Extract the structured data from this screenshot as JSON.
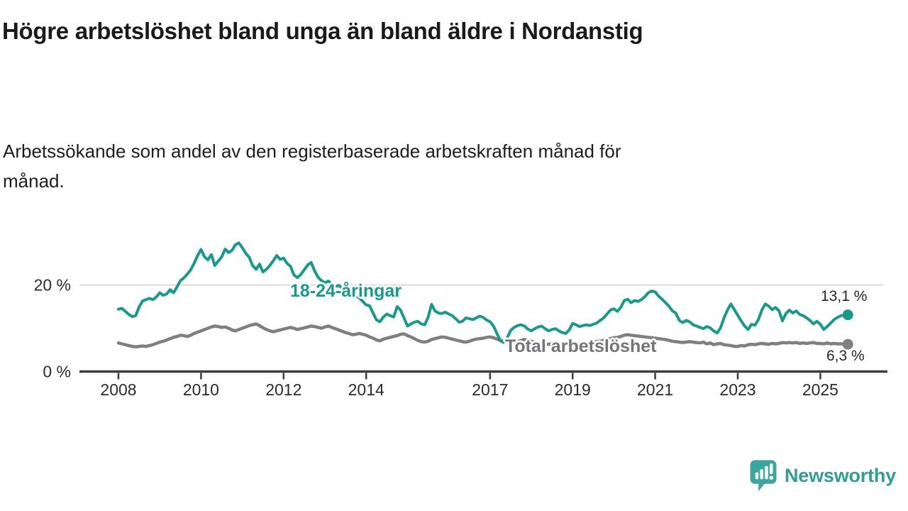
{
  "header": {
    "title": "Högre arbetslöshet bland unga än bland äldre i Nordanstig",
    "subtitle": "Arbetssökande som andel av den registerbaserade arbetskraften månad för månad."
  },
  "footer": {
    "brand": "Newsworthy",
    "logo_icon": "speech-bubble-bar-chart-icon"
  },
  "chart_data": {
    "type": "line",
    "unit": "percent",
    "grid": "single horizontal gridline at 20 %",
    "legend_position": "inline labels on lines",
    "colors": {
      "background": "#ffffff",
      "axis": "#3d3d3d",
      "gridline": "#dadada",
      "tick_text": "#2b2b2b",
      "end_label_text": "#262626"
    },
    "x_axis": {
      "start_year": 2008,
      "months_per_point": 1,
      "ticks": [
        2008,
        2010,
        2012,
        2014,
        2017,
        2019,
        2021,
        2023,
        2025
      ],
      "range": [
        2007.9,
        2025.8
      ]
    },
    "y_axis": {
      "range": [
        0,
        31
      ],
      "ticks": [
        {
          "value": 0,
          "label": "0 %",
          "grid": false
        },
        {
          "value": 20,
          "label": "20 %",
          "grid": true
        }
      ]
    },
    "series": [
      {
        "name": "18-24-åringar",
        "color": "#169b8b",
        "label_color": "#169b8b",
        "stroke_width": 4,
        "end_label": "13,1 %",
        "end_value": 13.1,
        "start_year": 2008,
        "points_per_year": 12,
        "values": [
          14.4,
          14.6,
          13.9,
          13.2,
          12.7,
          12.9,
          14.9,
          16.3,
          16.6,
          16.9,
          16.6,
          17.2,
          18.2,
          17.6,
          17.9,
          18.9,
          18.2,
          19.5,
          21.0,
          21.6,
          22.5,
          23.5,
          25.0,
          26.8,
          28.2,
          26.5,
          25.8,
          27.0,
          24.5,
          25.5,
          26.5,
          28.3,
          27.5,
          28.0,
          29.3,
          29.7,
          28.6,
          27.3,
          26.4,
          24.5,
          23.6,
          24.8,
          23.0,
          23.6,
          24.5,
          25.6,
          26.8,
          25.9,
          26.2,
          25.0,
          24.3,
          22.3,
          21.7,
          22.4,
          23.5,
          24.6,
          25.2,
          23.3,
          21.8,
          21.0,
          20.5,
          20.9,
          20.2,
          19.6,
          19.9,
          19.2,
          18.6,
          18.9,
          18.1,
          17.5,
          17.0,
          16.2,
          15.4,
          15.2,
          13.5,
          11.9,
          11.5,
          12.6,
          13.3,
          12.9,
          12.6,
          15.0,
          14.2,
          12.4,
          10.5,
          11.0,
          11.4,
          11.6,
          11.0,
          10.8,
          12.5,
          15.5,
          14.0,
          13.5,
          13.4,
          13.7,
          13.3,
          12.9,
          12.2,
          11.4,
          11.6,
          12.4,
          12.2,
          12.0,
          12.4,
          12.8,
          12.5,
          11.9,
          11.5,
          10.5,
          8.8,
          7.1,
          6.7,
          7.8,
          9.5,
          10.2,
          10.6,
          10.8,
          10.5,
          9.8,
          9.4,
          9.9,
          10.3,
          10.5,
          9.9,
          9.4,
          9.7,
          9.9,
          9.4,
          9.0,
          8.8,
          9.6,
          11.1,
          10.8,
          10.4,
          10.6,
          10.8,
          10.6,
          10.9,
          11.2,
          11.8,
          12.4,
          13.3,
          14.2,
          14.5,
          13.9,
          14.8,
          16.4,
          16.7,
          15.9,
          16.4,
          16.2,
          16.6,
          17.3,
          18.2,
          18.6,
          18.4,
          17.4,
          16.7,
          15.9,
          15.1,
          14.0,
          13.5,
          11.8,
          11.3,
          11.8,
          11.5,
          10.8,
          10.5,
          10.2,
          9.9,
          10.4,
          10.1,
          9.4,
          8.9,
          10.1,
          12.4,
          14.2,
          15.6,
          14.3,
          13.0,
          11.7,
          10.5,
          9.7,
          10.9,
          10.7,
          12.0,
          14.2,
          15.6,
          15.1,
          14.3,
          14.8,
          14.0,
          11.7,
          13.4,
          14.2,
          13.5,
          14.0,
          13.2,
          12.9,
          12.4,
          11.8,
          11.0,
          11.6,
          10.9,
          9.7,
          10.4,
          11.2,
          12.0,
          12.5,
          12.9,
          13.0,
          13.1
        ]
      },
      {
        "name": "Total arbetslöshet",
        "color": "#7f7f81",
        "label_color": "#757577",
        "stroke_width": 4.5,
        "end_label": "6,3 %",
        "end_value": 6.3,
        "start_year": 2008,
        "points_per_year": 12,
        "values": [
          6.6,
          6.4,
          6.2,
          6.0,
          5.8,
          5.7,
          5.8,
          5.9,
          5.8,
          6.0,
          6.2,
          6.5,
          6.8,
          7.0,
          7.3,
          7.6,
          7.9,
          8.1,
          8.4,
          8.3,
          8.1,
          8.4,
          8.8,
          9.1,
          9.4,
          9.7,
          10.0,
          10.3,
          10.5,
          10.4,
          10.2,
          10.3,
          10.0,
          9.6,
          9.4,
          9.7,
          10.0,
          10.3,
          10.6,
          10.8,
          11.0,
          10.6,
          10.1,
          9.7,
          9.4,
          9.2,
          9.4,
          9.6,
          9.8,
          10.0,
          10.2,
          10.0,
          9.7,
          9.9,
          10.1,
          10.3,
          10.5,
          10.4,
          10.2,
          10.0,
          10.3,
          10.5,
          10.2,
          9.9,
          9.6,
          9.3,
          9.0,
          8.8,
          8.5,
          8.6,
          8.8,
          8.6,
          8.4,
          8.0,
          7.7,
          7.3,
          7.1,
          7.5,
          7.7,
          7.9,
          8.1,
          8.3,
          8.6,
          8.7,
          8.3,
          8.0,
          7.6,
          7.2,
          6.9,
          6.8,
          7.0,
          7.4,
          7.6,
          7.8,
          8.0,
          7.9,
          7.7,
          7.5,
          7.3,
          7.1,
          6.9,
          6.8,
          7.0,
          7.3,
          7.5,
          7.6,
          7.7,
          7.9,
          8.0,
          7.8,
          7.5,
          7.2,
          7.0,
          6.8,
          6.6,
          6.7,
          6.9,
          7.2,
          7.4,
          7.2,
          7.0,
          6.8,
          6.6,
          6.5,
          6.4,
          6.3,
          6.4,
          6.5,
          6.4,
          6.3,
          6.4,
          6.5,
          6.6,
          6.5,
          6.4,
          6.5,
          6.6,
          6.7,
          6.8,
          6.9,
          7.0,
          7.2,
          7.4,
          7.6,
          7.8,
          7.9,
          8.1,
          8.4,
          8.5,
          8.4,
          8.3,
          8.2,
          8.1,
          8.0,
          7.9,
          7.8,
          7.7,
          7.6,
          7.5,
          7.4,
          7.2,
          7.0,
          6.9,
          6.8,
          6.7,
          6.8,
          6.9,
          6.8,
          6.7,
          6.6,
          6.8,
          6.4,
          6.6,
          6.2,
          6.4,
          6.5,
          6.2,
          6.1,
          6.0,
          5.8,
          5.8,
          6.0,
          5.9,
          6.2,
          6.3,
          6.2,
          6.4,
          6.5,
          6.4,
          6.3,
          6.5,
          6.4,
          6.5,
          6.7,
          6.6,
          6.7,
          6.6,
          6.7,
          6.5,
          6.6,
          6.5,
          6.6,
          6.7,
          6.5,
          6.5,
          6.4,
          6.6,
          6.4,
          6.5,
          6.4,
          6.4,
          6.3,
          6.3
        ]
      }
    ]
  }
}
